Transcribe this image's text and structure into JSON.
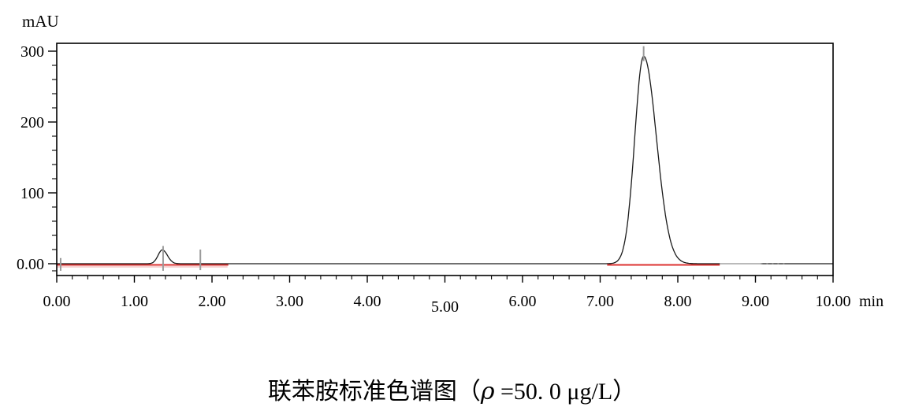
{
  "chart_data": {
    "type": "line",
    "title": "联苯胺标准色谱图（ρ =50. 0 μg/L）",
    "ylabel": "mAU",
    "xunit": "min",
    "x_axis": {
      "min": 0,
      "max": 10,
      "major_step": 1.0,
      "minor_step": 0.2,
      "major_labels": [
        "0.00",
        "1.00",
        "2.00",
        "3.00",
        "4.00",
        "5.00",
        "6.00",
        "7.00",
        "8.00",
        "9.00",
        "10.00"
      ],
      "lowered_label": "5.00"
    },
    "y_axis": {
      "min": -16,
      "max": 311,
      "major_ticks": [
        0,
        100,
        200,
        300
      ],
      "major_labels": [
        "0.00",
        "100",
        "200",
        "300"
      ],
      "minor_step": 20,
      "extra_minor_ticks": [
        -10
      ]
    },
    "baseline_mAU": 0,
    "peaks": [
      {
        "name": "minor-early-peak",
        "rt_min": 1.36,
        "height_mAU": 19.5,
        "sigma_left_min": 0.055,
        "sigma_right_min": 0.065
      },
      {
        "name": "benzidine-main-peak",
        "rt_min": 7.56,
        "height_mAU": 293,
        "sigma_left_min": 0.115,
        "sigma_right_min": 0.165
      }
    ],
    "red_baseline_segments": [
      {
        "t1": 0.0,
        "t2": 2.21
      },
      {
        "t1": 7.09,
        "t2": 8.54
      }
    ],
    "red_shadow_segment": {
      "t1": 0.0,
      "t2": 2.2
    },
    "faded_trace_segments": [
      {
        "t1": 8.54,
        "t2": 9.07,
        "style": "solid"
      },
      {
        "t1": 9.07,
        "t2": 9.4,
        "style": "dotted"
      }
    ],
    "markers": [
      {
        "name": "integration-start-marker",
        "t": 0.05,
        "from_mAU": -10,
        "to_mAU": 8
      },
      {
        "name": "peak1-apex-marker",
        "t": 1.37,
        "from_mAU": -10,
        "to_mAU": 25
      },
      {
        "name": "integration-end-marker",
        "t": 1.85,
        "from_mAU": -9,
        "to_mAU": 20
      },
      {
        "name": "peak2-apex-marker",
        "t": 7.56,
        "from_mAU": 286,
        "to_mAU": 307
      }
    ],
    "colors": {
      "signal": "#1a1a1a",
      "baseline_red": "#dd3230",
      "baseline_red_light": "#f0b4b4",
      "marker_grey": "#9a9a9a",
      "faded_trace": "#b4b4b4",
      "dotted_trace": "#777777",
      "frame": "#000000"
    }
  },
  "caption": {
    "prefix": "联苯胺标准色谱图（",
    "rho": "ρ",
    "suffix": " =50. 0 μg/L）"
  }
}
